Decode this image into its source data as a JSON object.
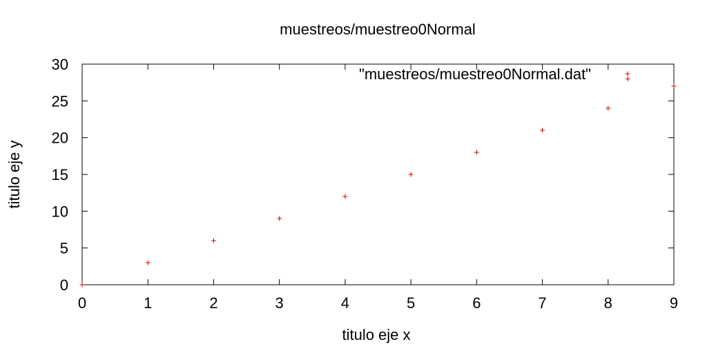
{
  "chart_data": {
    "type": "scatter",
    "title": "muestreos/muestreo0Normal",
    "xlabel": "titulo eje x",
    "ylabel": "titulo eje y",
    "xlim": [
      0,
      9
    ],
    "ylim": [
      0,
      30
    ],
    "x_ticks": [
      "0",
      "1",
      "2",
      "3",
      "4",
      "5",
      "6",
      "7",
      "8",
      "9"
    ],
    "y_ticks": [
      "0",
      "5",
      "10",
      "15",
      "20",
      "25",
      "30"
    ],
    "grid": false,
    "legend_position": "top-right",
    "series": [
      {
        "name": "\"muestreos/muestreo0Normal.dat\"",
        "color": "#cc0000",
        "marker": "plus",
        "points": [
          {
            "x": 0,
            "y": 0
          },
          {
            "x": 1,
            "y": 3
          },
          {
            "x": 2,
            "y": 6
          },
          {
            "x": 3,
            "y": 9
          },
          {
            "x": 4,
            "y": 12
          },
          {
            "x": 5,
            "y": 15
          },
          {
            "x": 6,
            "y": 18
          },
          {
            "x": 7,
            "y": 21
          },
          {
            "x": 8,
            "y": 24
          },
          {
            "x": 8.3,
            "y": 28
          },
          {
            "x": 9,
            "y": 27
          }
        ]
      }
    ]
  }
}
